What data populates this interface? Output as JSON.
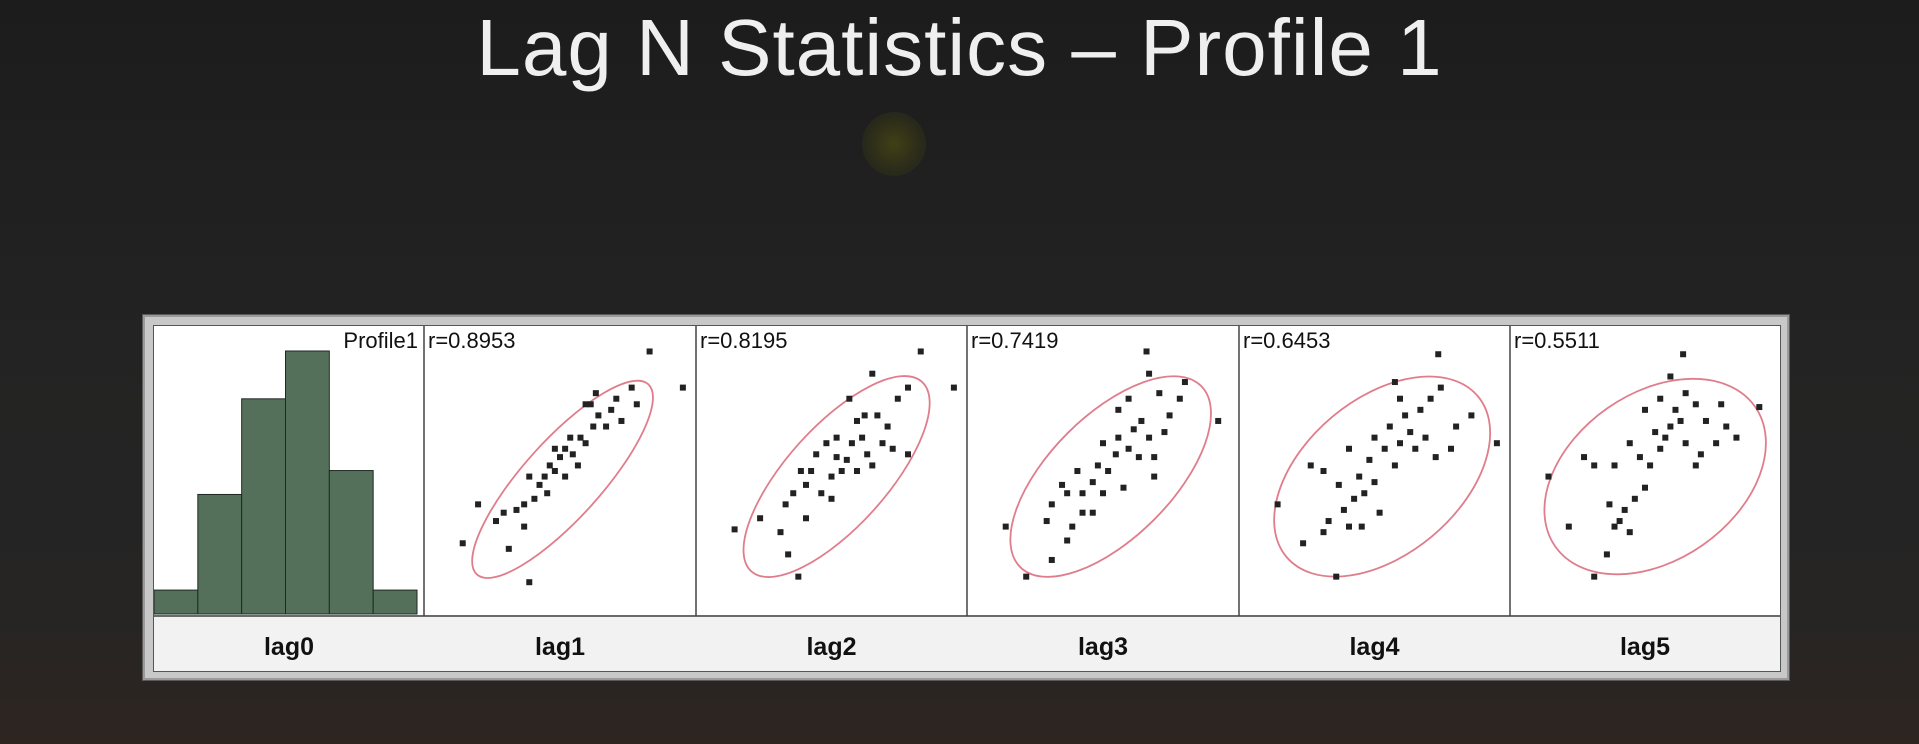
{
  "slide": {
    "title": "Lag N Statistics – Profile 1"
  },
  "colors": {
    "histogram_fill": "#55705a",
    "ellipse_stroke": "#e07d8c",
    "point_fill": "#222222"
  },
  "chart_data": {
    "type": "scatter",
    "title": "",
    "histogram": {
      "name": "lag0",
      "legend": "Profile1",
      "counts": [
        1,
        5,
        9,
        11,
        6,
        1
      ]
    },
    "panels": [
      {
        "name": "lag1",
        "r_label": "r=0.8953",
        "ellipse": {
          "cx": 0.51,
          "cy": 0.47,
          "rx": 0.5,
          "ry": 0.14,
          "angle": 48
        },
        "points": [
          [
            0.85,
            0.93
          ],
          [
            0.98,
            0.8
          ],
          [
            0.3,
            0.22
          ],
          [
            0.18,
            0.38
          ],
          [
            0.12,
            0.24
          ],
          [
            0.38,
            0.1
          ],
          [
            0.36,
            0.3
          ],
          [
            0.25,
            0.32
          ],
          [
            0.28,
            0.35
          ],
          [
            0.33,
            0.36
          ],
          [
            0.36,
            0.38
          ],
          [
            0.4,
            0.4
          ],
          [
            0.42,
            0.45
          ],
          [
            0.38,
            0.48
          ],
          [
            0.44,
            0.48
          ],
          [
            0.46,
            0.52
          ],
          [
            0.48,
            0.5
          ],
          [
            0.5,
            0.55
          ],
          [
            0.52,
            0.58
          ],
          [
            0.48,
            0.58
          ],
          [
            0.55,
            0.56
          ],
          [
            0.58,
            0.62
          ],
          [
            0.6,
            0.6
          ],
          [
            0.63,
            0.66
          ],
          [
            0.65,
            0.7
          ],
          [
            0.62,
            0.74
          ],
          [
            0.68,
            0.66
          ],
          [
            0.7,
            0.72
          ],
          [
            0.72,
            0.76
          ],
          [
            0.78,
            0.8
          ],
          [
            0.74,
            0.68
          ],
          [
            0.54,
            0.62
          ],
          [
            0.52,
            0.48
          ],
          [
            0.57,
            0.52
          ],
          [
            0.45,
            0.42
          ],
          [
            0.6,
            0.74
          ],
          [
            0.8,
            0.74
          ],
          [
            0.64,
            0.78
          ]
        ]
      },
      {
        "name": "lag2",
        "r_label": "r=0.8195",
        "ellipse": {
          "cx": 0.52,
          "cy": 0.48,
          "rx": 0.5,
          "ry": 0.18,
          "angle": 48
        },
        "points": [
          [
            0.85,
            0.93
          ],
          [
            0.98,
            0.8
          ],
          [
            0.12,
            0.29
          ],
          [
            0.37,
            0.12
          ],
          [
            0.33,
            0.2
          ],
          [
            0.22,
            0.33
          ],
          [
            0.3,
            0.28
          ],
          [
            0.4,
            0.33
          ],
          [
            0.32,
            0.38
          ],
          [
            0.35,
            0.42
          ],
          [
            0.4,
            0.45
          ],
          [
            0.42,
            0.5
          ],
          [
            0.46,
            0.42
          ],
          [
            0.5,
            0.4
          ],
          [
            0.5,
            0.48
          ],
          [
            0.54,
            0.5
          ],
          [
            0.52,
            0.55
          ],
          [
            0.56,
            0.54
          ],
          [
            0.6,
            0.5
          ],
          [
            0.58,
            0.6
          ],
          [
            0.62,
            0.62
          ],
          [
            0.64,
            0.56
          ],
          [
            0.66,
            0.52
          ],
          [
            0.7,
            0.6
          ],
          [
            0.74,
            0.58
          ],
          [
            0.72,
            0.66
          ],
          [
            0.8,
            0.56
          ],
          [
            0.68,
            0.7
          ],
          [
            0.76,
            0.76
          ],
          [
            0.66,
            0.85
          ],
          [
            0.8,
            0.8
          ],
          [
            0.57,
            0.76
          ],
          [
            0.63,
            0.7
          ],
          [
            0.48,
            0.6
          ],
          [
            0.44,
            0.56
          ],
          [
            0.38,
            0.5
          ],
          [
            0.52,
            0.62
          ],
          [
            0.6,
            0.68
          ]
        ]
      },
      {
        "name": "lag3",
        "r_label": "r=0.7419",
        "ellipse": {
          "cx": 0.53,
          "cy": 0.48,
          "rx": 0.5,
          "ry": 0.22,
          "angle": 45
        },
        "points": [
          [
            0.67,
            0.93
          ],
          [
            0.95,
            0.68
          ],
          [
            0.12,
            0.3
          ],
          [
            0.2,
            0.12
          ],
          [
            0.3,
            0.18
          ],
          [
            0.28,
            0.32
          ],
          [
            0.36,
            0.25
          ],
          [
            0.38,
            0.3
          ],
          [
            0.42,
            0.35
          ],
          [
            0.3,
            0.38
          ],
          [
            0.36,
            0.42
          ],
          [
            0.42,
            0.42
          ],
          [
            0.46,
            0.46
          ],
          [
            0.4,
            0.5
          ],
          [
            0.48,
            0.52
          ],
          [
            0.52,
            0.5
          ],
          [
            0.55,
            0.56
          ],
          [
            0.5,
            0.6
          ],
          [
            0.56,
            0.62
          ],
          [
            0.6,
            0.58
          ],
          [
            0.62,
            0.65
          ],
          [
            0.65,
            0.68
          ],
          [
            0.68,
            0.62
          ],
          [
            0.7,
            0.55
          ],
          [
            0.74,
            0.64
          ],
          [
            0.76,
            0.7
          ],
          [
            0.8,
            0.76
          ],
          [
            0.82,
            0.82
          ],
          [
            0.72,
            0.78
          ],
          [
            0.68,
            0.85
          ],
          [
            0.6,
            0.76
          ],
          [
            0.56,
            0.72
          ],
          [
            0.64,
            0.55
          ],
          [
            0.7,
            0.48
          ],
          [
            0.5,
            0.42
          ],
          [
            0.46,
            0.35
          ],
          [
            0.58,
            0.44
          ],
          [
            0.34,
            0.45
          ]
        ]
      },
      {
        "name": "lag4",
        "r_label": "r=0.6453",
        "ellipse": {
          "cx": 0.53,
          "cy": 0.48,
          "rx": 0.49,
          "ry": 0.28,
          "angle": 40
        },
        "points": [
          [
            0.75,
            0.92
          ],
          [
            0.98,
            0.6
          ],
          [
            0.12,
            0.38
          ],
          [
            0.22,
            0.24
          ],
          [
            0.35,
            0.12
          ],
          [
            0.3,
            0.28
          ],
          [
            0.32,
            0.32
          ],
          [
            0.4,
            0.3
          ],
          [
            0.38,
            0.36
          ],
          [
            0.42,
            0.4
          ],
          [
            0.36,
            0.45
          ],
          [
            0.44,
            0.48
          ],
          [
            0.46,
            0.42
          ],
          [
            0.5,
            0.46
          ],
          [
            0.48,
            0.54
          ],
          [
            0.54,
            0.58
          ],
          [
            0.58,
            0.52
          ],
          [
            0.6,
            0.6
          ],
          [
            0.56,
            0.66
          ],
          [
            0.62,
            0.7
          ],
          [
            0.64,
            0.64
          ],
          [
            0.66,
            0.58
          ],
          [
            0.7,
            0.62
          ],
          [
            0.68,
            0.72
          ],
          [
            0.72,
            0.76
          ],
          [
            0.76,
            0.8
          ],
          [
            0.58,
            0.82
          ],
          [
            0.6,
            0.76
          ],
          [
            0.82,
            0.66
          ],
          [
            0.8,
            0.58
          ],
          [
            0.74,
            0.55
          ],
          [
            0.3,
            0.5
          ],
          [
            0.25,
            0.52
          ],
          [
            0.45,
            0.3
          ],
          [
            0.52,
            0.35
          ],
          [
            0.88,
            0.7
          ],
          [
            0.5,
            0.62
          ],
          [
            0.4,
            0.58
          ]
        ]
      },
      {
        "name": "lag5",
        "r_label": "r=0.5511",
        "ellipse": {
          "cx": 0.54,
          "cy": 0.48,
          "rx": 0.48,
          "ry": 0.3,
          "angle": 35
        },
        "points": [
          [
            0.65,
            0.92
          ],
          [
            0.95,
            0.73
          ],
          [
            0.12,
            0.48
          ],
          [
            0.3,
            0.12
          ],
          [
            0.2,
            0.3
          ],
          [
            0.35,
            0.2
          ],
          [
            0.38,
            0.3
          ],
          [
            0.4,
            0.32
          ],
          [
            0.44,
            0.28
          ],
          [
            0.42,
            0.36
          ],
          [
            0.36,
            0.38
          ],
          [
            0.46,
            0.4
          ],
          [
            0.5,
            0.44
          ],
          [
            0.52,
            0.52
          ],
          [
            0.48,
            0.55
          ],
          [
            0.56,
            0.58
          ],
          [
            0.58,
            0.62
          ],
          [
            0.6,
            0.66
          ],
          [
            0.54,
            0.64
          ],
          [
            0.62,
            0.72
          ],
          [
            0.66,
            0.78
          ],
          [
            0.6,
            0.84
          ],
          [
            0.7,
            0.74
          ],
          [
            0.74,
            0.68
          ],
          [
            0.78,
            0.6
          ],
          [
            0.82,
            0.66
          ],
          [
            0.86,
            0.62
          ],
          [
            0.72,
            0.56
          ],
          [
            0.66,
            0.6
          ],
          [
            0.8,
            0.74
          ],
          [
            0.3,
            0.52
          ],
          [
            0.26,
            0.55
          ],
          [
            0.38,
            0.52
          ],
          [
            0.64,
            0.68
          ],
          [
            0.56,
            0.76
          ],
          [
            0.5,
            0.72
          ],
          [
            0.7,
            0.52
          ],
          [
            0.44,
            0.6
          ]
        ]
      }
    ]
  }
}
